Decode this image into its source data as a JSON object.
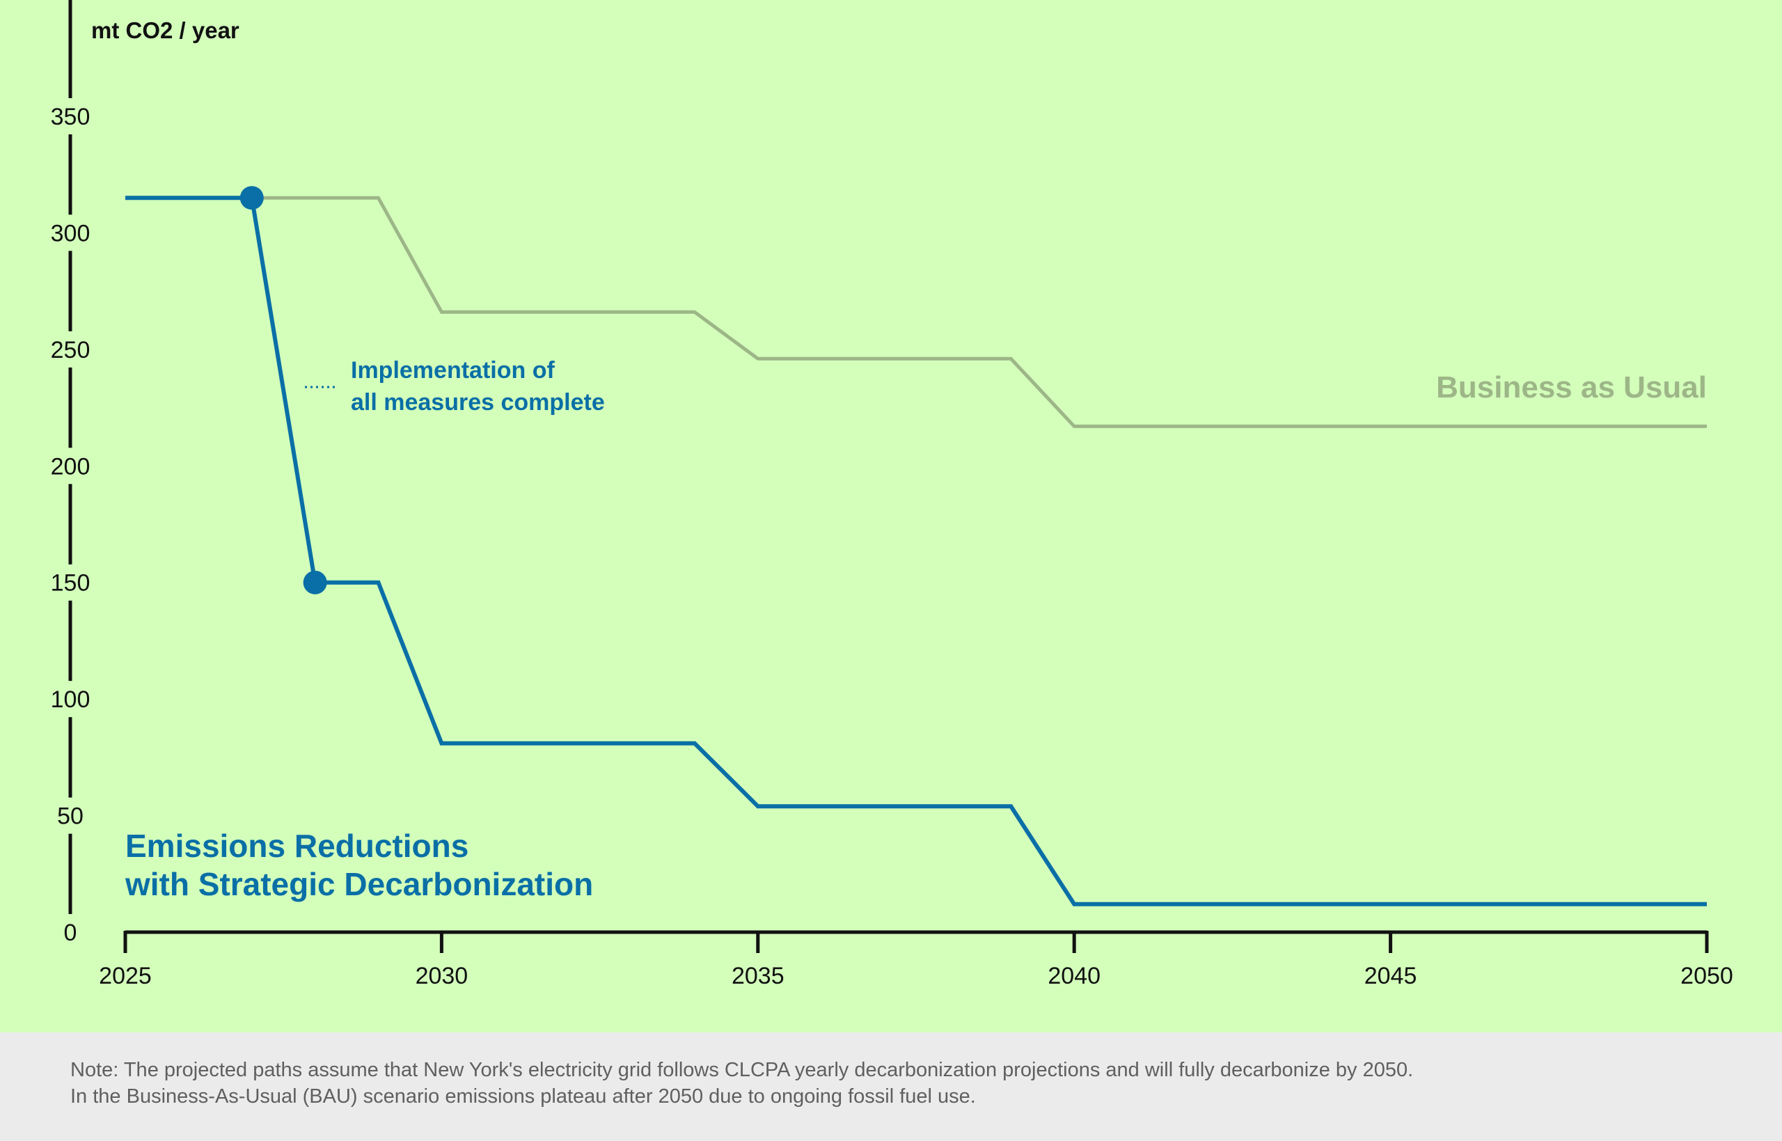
{
  "chart_data": {
    "type": "line",
    "ylabel": "mt CO2 / year",
    "xlim": [
      2025,
      2050
    ],
    "ylim": [
      0,
      350
    ],
    "x_ticks": [
      2025,
      2030,
      2035,
      2040,
      2045,
      2050
    ],
    "y_ticks": [
      0,
      50,
      100,
      150,
      200,
      250,
      300,
      350
    ],
    "grid": false,
    "series": [
      {
        "name": "Business as Usual",
        "color": "#9db687",
        "x": [
          2025,
          2027,
          2029,
          2030,
          2034,
          2035,
          2039,
          2040,
          2050
        ],
        "y": [
          315,
          315,
          315,
          266,
          266,
          246,
          246,
          217,
          217
        ]
      },
      {
        "name": "Emissions Reductions with Strategic Decarbonization",
        "label_lines": [
          "Emissions Reductions",
          "with Strategic Decarbonization"
        ],
        "color": "#0a6fa6",
        "x": [
          2025,
          2027,
          2028,
          2029,
          2030,
          2034,
          2035,
          2039,
          2040,
          2050
        ],
        "y": [
          315,
          315,
          150,
          150,
          81,
          81,
          54,
          54,
          12,
          12
        ]
      }
    ],
    "markers": [
      {
        "x": 2027,
        "y": 315
      },
      {
        "x": 2028,
        "y": 150
      }
    ],
    "annotation": {
      "lines": [
        "Implementation of",
        "all measures complete"
      ]
    }
  },
  "note": {
    "line1": "Note: The projected paths assume that New York's electricity grid follows CLCPA yearly decarbonization projections and will fully decarbonize by 2050.",
    "line2": "In the Business-As-Usual (BAU) scenario emissions plateau after 2050 due to ongoing fossil fuel use."
  }
}
